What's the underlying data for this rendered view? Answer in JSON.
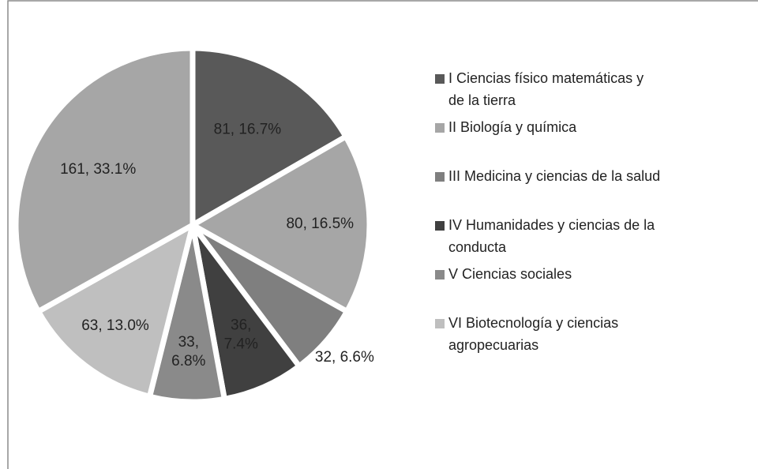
{
  "chart_data": {
    "type": "pie",
    "categories": [
      "I Ciencias físico matemáticas  y de la tierra",
      "II Biología y química",
      "III Medicina y ciencias de la salud",
      "IV Humanidades y ciencias de la conducta",
      "V Ciencias sociales",
      "VI Biotecnología y ciencias agropecuarias",
      null
    ],
    "values": [
      81,
      80,
      32,
      36,
      33,
      63,
      161
    ],
    "value_labels": [
      "81, 16.7%",
      "80, 16.5%",
      "32, 6.6%",
      "36, 7.4%",
      "33, 6.8%",
      "63, 13.0%",
      "161, 33.1%"
    ],
    "colors": [
      "#595959",
      "#a6a6a6",
      "#7f7f7f",
      "#404040",
      "#8a8a8a",
      "#bfbfbf",
      "#a6a6a6"
    ],
    "legend": "right"
  }
}
